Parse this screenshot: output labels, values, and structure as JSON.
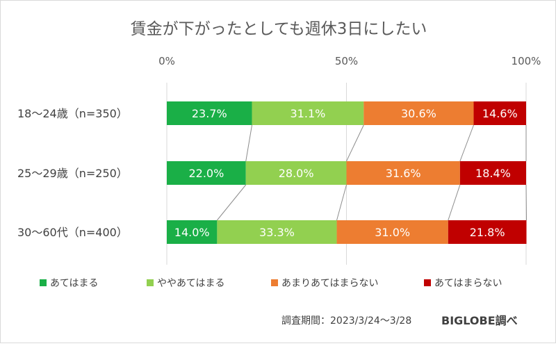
{
  "chart_data": {
    "type": "stacked-bar-100",
    "title": "賃金が下がったとしても週休3日にしたい",
    "x_ticks": [
      "0%",
      "50%",
      "100%"
    ],
    "categories": [
      "18〜24歳（n=350）",
      "25〜29歳（n=250）",
      "30〜60代（n=400）"
    ],
    "series": [
      {
        "name": "あてはまる",
        "color": "#1aaf47",
        "values": [
          23.7,
          22.0,
          14.0
        ],
        "labels": [
          "23.7%",
          "22.0%",
          "14.0%"
        ]
      },
      {
        "name": "ややあてはまる",
        "color": "#92d050",
        "values": [
          31.1,
          28.0,
          33.3
        ],
        "labels": [
          "31.1%",
          "28.0%",
          "33.3%"
        ]
      },
      {
        "name": "あまりあてはまらない",
        "color": "#ed7d31",
        "values": [
          30.6,
          31.6,
          31.0
        ],
        "labels": [
          "30.6%",
          "31.6%",
          "31.0%"
        ]
      },
      {
        "name": "あてはまらない",
        "color": "#c00000",
        "values": [
          14.6,
          18.4,
          21.8
        ],
        "labels": [
          "14.6%",
          "18.4%",
          "21.8%"
        ]
      }
    ],
    "legend_position": "bottom"
  },
  "footer": {
    "survey_period": "調査期間：2023/3/24〜3/28",
    "brand": "BIGLOBE調べ"
  }
}
